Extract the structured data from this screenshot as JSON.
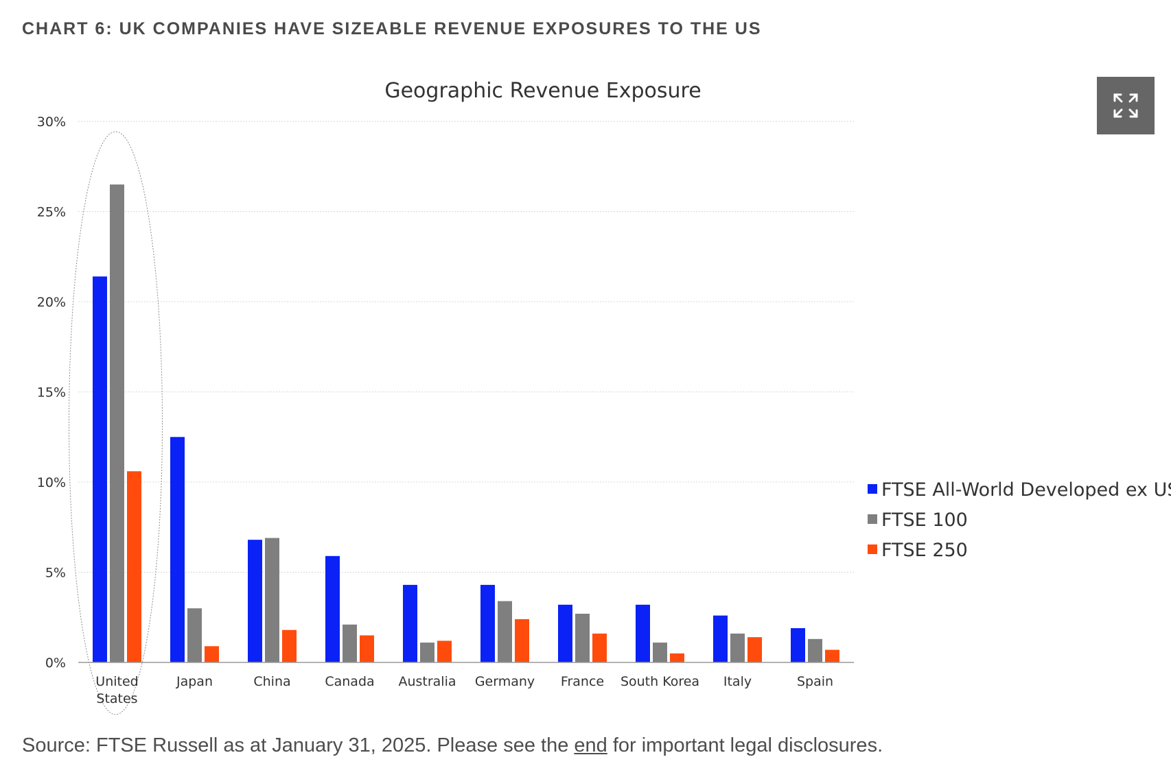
{
  "heading": "CHART 6: UK COMPANIES HAVE SIZEABLE REVENUE EXPOSURES TO THE US",
  "source": {
    "prefix": "Source: FTSE Russell as at January 31, 2025. Please see the ",
    "link_text": "end",
    "suffix": " for important legal disclosures."
  },
  "expand_icon": "expand-icon",
  "colors": {
    "series": [
      "#0a22f5",
      "#7f7f7f",
      "#ff4c0d"
    ],
    "grid": "#d9d9d9",
    "axis": "#999999"
  },
  "chart_data": {
    "type": "bar",
    "title": "Geographic Revenue Exposure",
    "xlabel": "",
    "ylabel": "",
    "ylim": [
      0,
      30
    ],
    "yticks": [
      "0%",
      "5%",
      "10%",
      "15%",
      "20%",
      "25%",
      "30%"
    ],
    "categories": [
      [
        "United",
        "States"
      ],
      [
        "Japan"
      ],
      [
        "China"
      ],
      [
        "Canada"
      ],
      [
        "Australia"
      ],
      [
        "Germany"
      ],
      [
        "France"
      ],
      [
        "South Korea"
      ],
      [
        "Italy"
      ],
      [
        "Spain"
      ]
    ],
    "series": [
      {
        "name": "FTSE All-World Developed ex US",
        "values": [
          21.4,
          12.5,
          6.8,
          5.9,
          4.3,
          4.3,
          3.2,
          3.2,
          2.6,
          1.9
        ]
      },
      {
        "name": "FTSE 100",
        "values": [
          26.5,
          3.0,
          6.9,
          2.1,
          1.1,
          3.4,
          2.7,
          1.1,
          1.6,
          1.3
        ]
      },
      {
        "name": "FTSE 250",
        "values": [
          10.6,
          0.9,
          1.8,
          1.5,
          1.2,
          2.4,
          1.6,
          0.5,
          1.4,
          0.7
        ]
      }
    ],
    "highlight": "United States",
    "legend_position": "right",
    "grid": true
  }
}
